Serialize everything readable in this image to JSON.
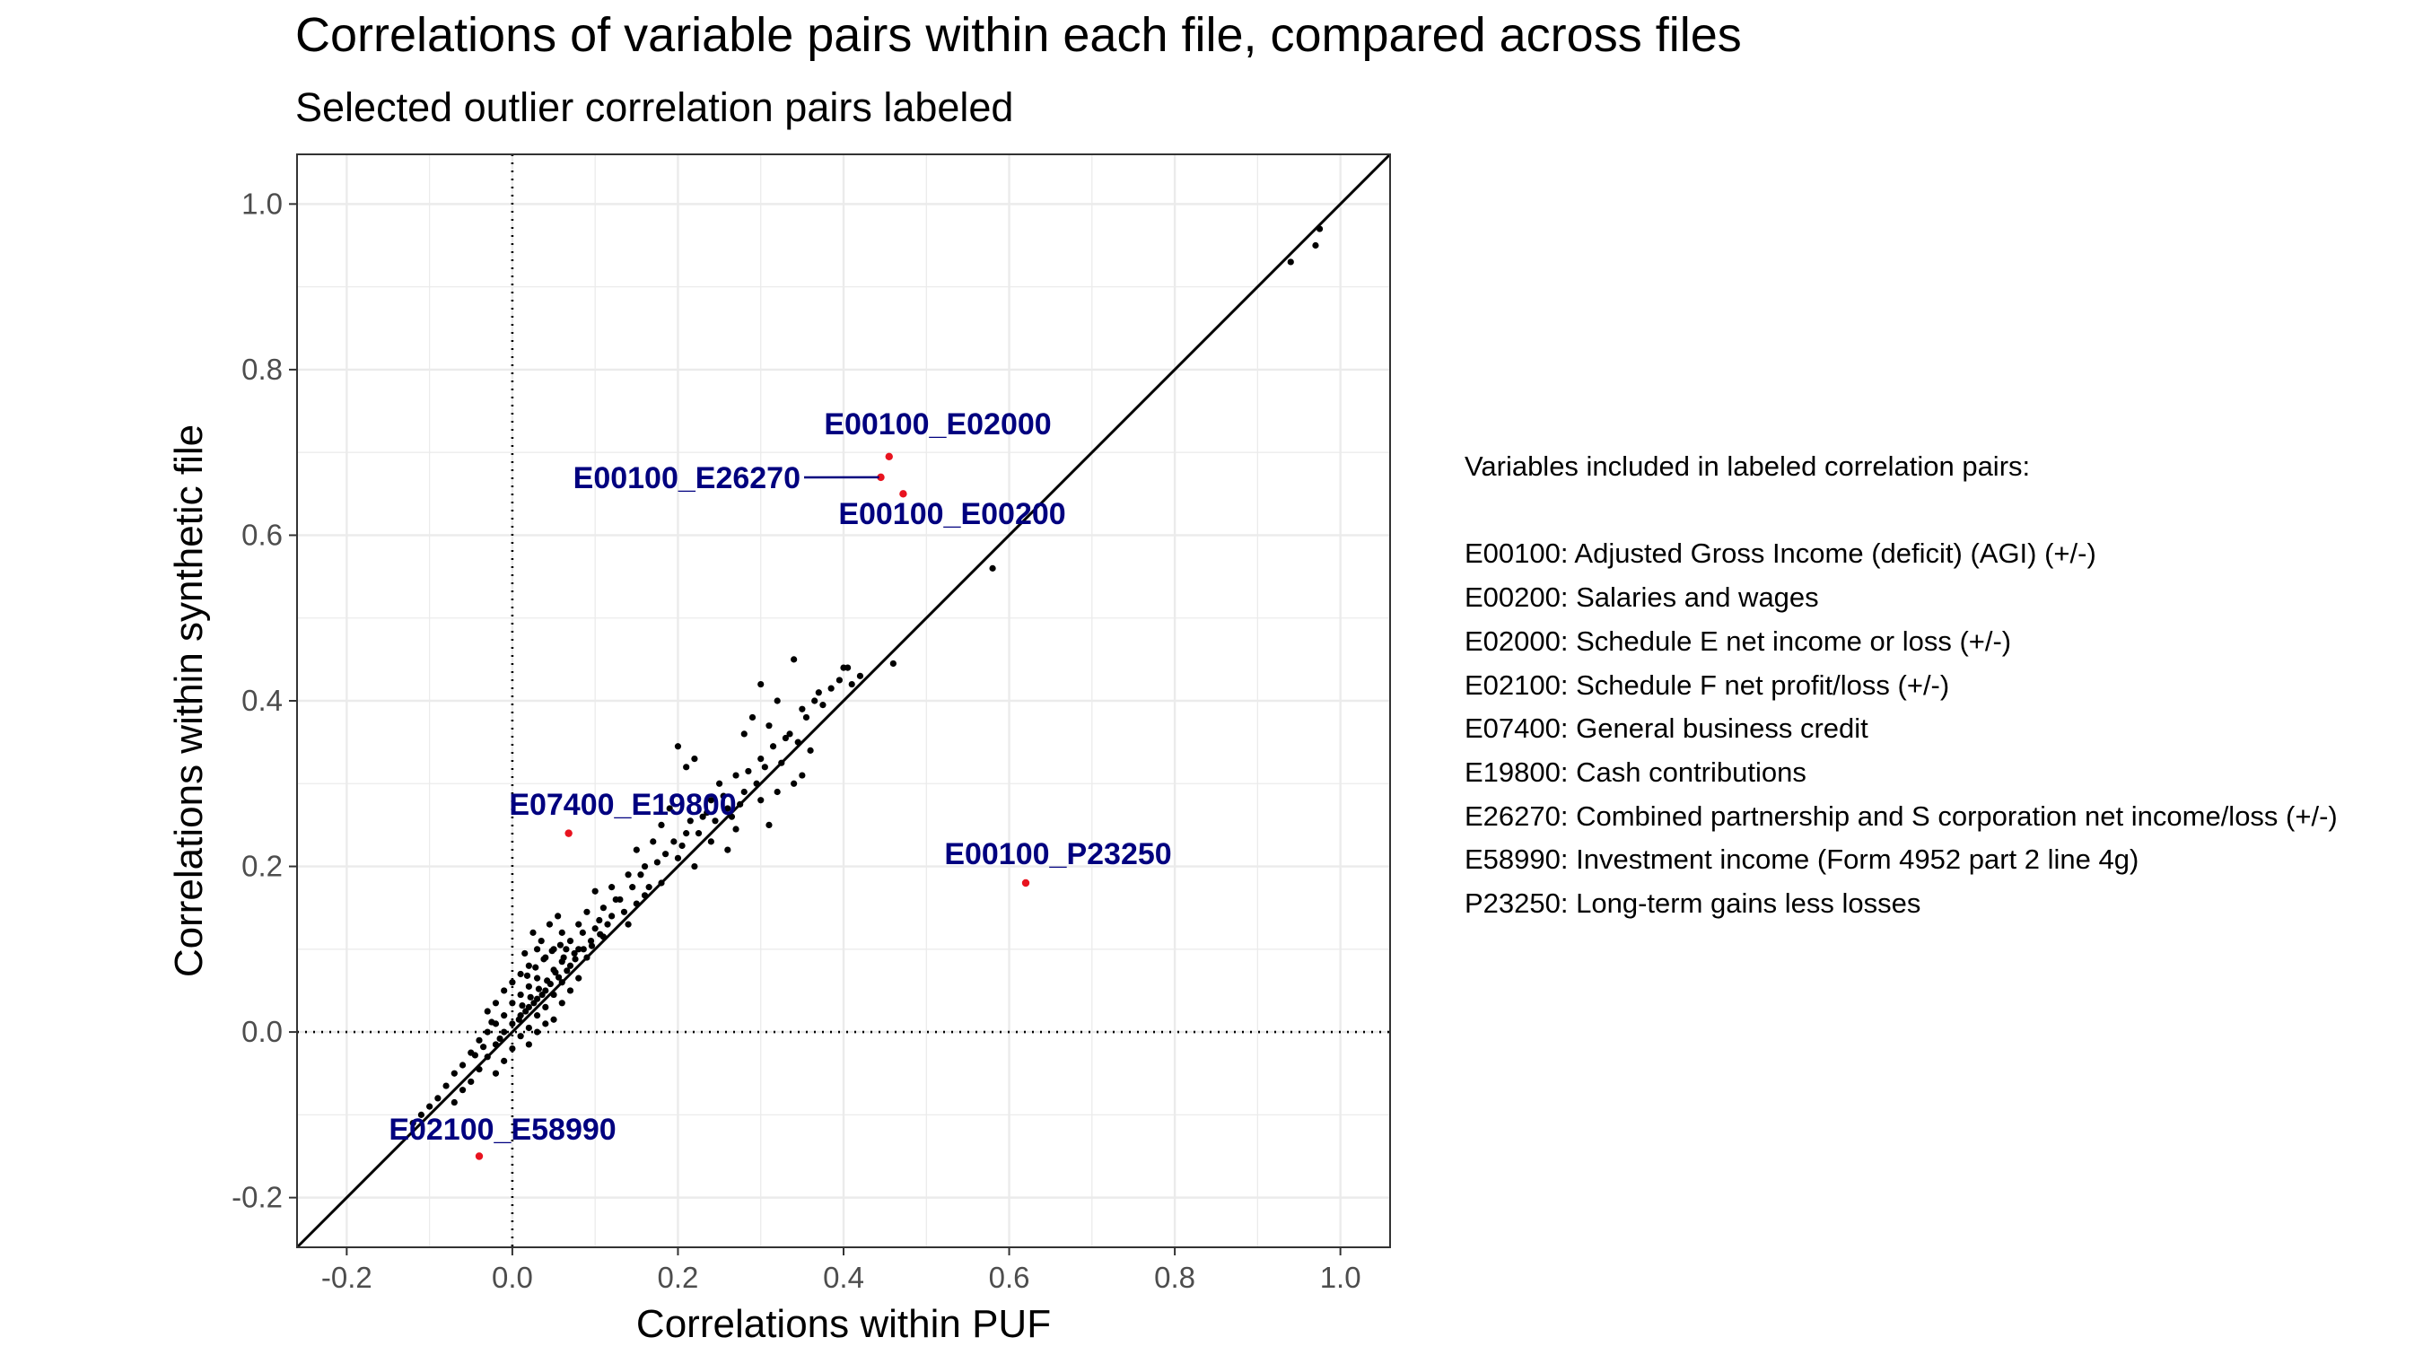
{
  "title": "Correlations of variable pairs within each file, compared across files",
  "subtitle": "Selected outlier correlation pairs labeled",
  "legend": {
    "heading": "Variables included in labeled correlation pairs:",
    "items": [
      "E00100: Adjusted Gross Income (deficit)  (AGI)  (+/-)",
      "E00200: Salaries and wages",
      "E02000: Schedule E net income or loss (+/-)",
      "E02100: Schedule F net profit/loss (+/-)",
      "E07400: General business credit",
      "E19800: Cash contributions",
      "E26270: Combined partnership and S corporation net income/loss (+/-)",
      "E58990: Investment income (Form 4952 part 2 line 4g)",
      "P23250: Long-term gains less losses"
    ]
  },
  "colors": {
    "points": "#000000",
    "outlier_points": "#e8131f",
    "labels": "#00007f",
    "grid": "#ebebeb",
    "panel_border": "#333333",
    "tick_text": "#4d4d4d"
  },
  "chart_data": {
    "type": "scatter",
    "xlabel": "Correlations within PUF",
    "ylabel": "Correlations within synthetic file",
    "xlim": [
      -0.26,
      1.06
    ],
    "ylim": [
      -0.26,
      1.06
    ],
    "x_ticks": [
      -0.2,
      0.0,
      0.2,
      0.4,
      0.6,
      0.8,
      1.0
    ],
    "y_ticks": [
      -0.2,
      0.0,
      0.2,
      0.4,
      0.6,
      0.8,
      1.0
    ],
    "x_tick_labels": [
      "-0.2",
      "0.0",
      "0.2",
      "0.4",
      "0.6",
      "0.8",
      "1.0"
    ],
    "y_tick_labels": [
      "-0.2",
      "0.0",
      "0.2",
      "0.4",
      "0.6",
      "0.8",
      "1.0"
    ],
    "grid": true,
    "reference_lines": {
      "diagonal": "y = x",
      "vertical_dotted_x": 0,
      "horizontal_dotted_y": 0
    },
    "labeled_points": [
      {
        "name": "E00100_E02000",
        "x": 0.455,
        "y": 0.695
      },
      {
        "name": "E00100_E26270",
        "x": 0.445,
        "y": 0.67
      },
      {
        "name": "E00100_E00200",
        "x": 0.472,
        "y": 0.65
      },
      {
        "name": "E07400_E19800",
        "x": 0.068,
        "y": 0.24
      },
      {
        "name": "E00100_P23250",
        "x": 0.62,
        "y": 0.18
      },
      {
        "name": "E02100_E58990",
        "x": -0.04,
        "y": -0.15
      }
    ],
    "points": [
      [
        0.94,
        0.93
      ],
      [
        0.97,
        0.95
      ],
      [
        0.975,
        0.97
      ],
      [
        0.58,
        0.56
      ],
      [
        0.34,
        0.45
      ],
      [
        0.4,
        0.44
      ],
      [
        0.42,
        0.43
      ],
      [
        0.46,
        0.445
      ],
      [
        0.3,
        0.42
      ],
      [
        0.32,
        0.4
      ],
      [
        0.35,
        0.39
      ],
      [
        0.37,
        0.41
      ],
      [
        0.41,
        0.42
      ],
      [
        0.29,
        0.38
      ],
      [
        0.28,
        0.36
      ],
      [
        0.31,
        0.37
      ],
      [
        0.33,
        0.355
      ],
      [
        0.36,
        0.34
      ],
      [
        0.3,
        0.33
      ],
      [
        0.35,
        0.31
      ],
      [
        0.34,
        0.3
      ],
      [
        0.32,
        0.29
      ],
      [
        0.2,
        0.345
      ],
      [
        0.21,
        0.32
      ],
      [
        0.22,
        0.33
      ],
      [
        0.25,
        0.3
      ],
      [
        0.27,
        0.31
      ],
      [
        0.24,
        0.28
      ],
      [
        0.26,
        0.27
      ],
      [
        0.23,
        0.26
      ],
      [
        0.28,
        0.29
      ],
      [
        0.3,
        0.28
      ],
      [
        0.31,
        0.25
      ],
      [
        0.27,
        0.245
      ],
      [
        0.19,
        0.27
      ],
      [
        0.18,
        0.25
      ],
      [
        0.21,
        0.24
      ],
      [
        0.24,
        0.23
      ],
      [
        0.26,
        0.22
      ],
      [
        0.17,
        0.23
      ],
      [
        0.15,
        0.22
      ],
      [
        0.2,
        0.21
      ],
      [
        0.22,
        0.2
      ],
      [
        0.16,
        0.2
      ],
      [
        0.14,
        0.19
      ],
      [
        0.18,
        0.18
      ],
      [
        0.12,
        0.175
      ],
      [
        0.1,
        0.17
      ],
      [
        0.13,
        0.16
      ],
      [
        0.16,
        0.165
      ],
      [
        0.11,
        0.15
      ],
      [
        0.09,
        0.145
      ],
      [
        0.08,
        0.13
      ],
      [
        0.12,
        0.14
      ],
      [
        0.15,
        0.155
      ],
      [
        0.06,
        0.12
      ],
      [
        0.07,
        0.11
      ],
      [
        0.1,
        0.125
      ],
      [
        0.14,
        0.13
      ],
      [
        0.05,
        0.1
      ],
      [
        0.03,
        0.1
      ],
      [
        0.04,
        0.09
      ],
      [
        0.08,
        0.1
      ],
      [
        0.11,
        0.115
      ],
      [
        0.02,
        0.08
      ],
      [
        0.06,
        0.085
      ],
      [
        0.09,
        0.09
      ],
      [
        0.01,
        0.07
      ],
      [
        0.03,
        0.065
      ],
      [
        0.05,
        0.075
      ],
      [
        0.07,
        0.08
      ],
      [
        0.0,
        0.06
      ],
      [
        0.02,
        0.055
      ],
      [
        0.04,
        0.05
      ],
      [
        0.06,
        0.06
      ],
      [
        0.08,
        0.065
      ],
      [
        -0.01,
        0.05
      ],
      [
        0.01,
        0.045
      ],
      [
        0.03,
        0.04
      ],
      [
        0.05,
        0.045
      ],
      [
        0.07,
        0.05
      ],
      [
        -0.02,
        0.035
      ],
      [
        0.0,
        0.035
      ],
      [
        0.02,
        0.03
      ],
      [
        0.04,
        0.03
      ],
      [
        0.06,
        0.035
      ],
      [
        -0.03,
        0.025
      ],
      [
        -0.01,
        0.02
      ],
      [
        0.01,
        0.02
      ],
      [
        0.03,
        0.02
      ],
      [
        0.05,
        0.015
      ],
      [
        -0.02,
        0.01
      ],
      [
        0.0,
        0.01
      ],
      [
        0.02,
        0.005
      ],
      [
        0.04,
        0.01
      ],
      [
        -0.03,
        0.0
      ],
      [
        -0.01,
        0.0
      ],
      [
        0.01,
        -0.005
      ],
      [
        0.03,
        0.0
      ],
      [
        -0.04,
        -0.01
      ],
      [
        -0.02,
        -0.015
      ],
      [
        0.0,
        -0.02
      ],
      [
        0.02,
        -0.015
      ],
      [
        -0.05,
        -0.025
      ],
      [
        -0.03,
        -0.03
      ],
      [
        -0.01,
        -0.035
      ],
      [
        -0.06,
        -0.04
      ],
      [
        -0.04,
        -0.045
      ],
      [
        -0.02,
        -0.05
      ],
      [
        -0.07,
        -0.05
      ],
      [
        -0.05,
        -0.06
      ],
      [
        -0.08,
        -0.065
      ],
      [
        -0.06,
        -0.07
      ],
      [
        -0.09,
        -0.08
      ],
      [
        -0.1,
        -0.09
      ],
      [
        -0.11,
        -0.1
      ],
      [
        -0.12,
        -0.11
      ],
      [
        -0.07,
        -0.085
      ],
      [
        0.035,
        0.11
      ],
      [
        0.045,
        0.13
      ],
      [
        0.025,
        0.12
      ],
      [
        0.055,
        0.14
      ],
      [
        0.015,
        0.095
      ],
      [
        0.065,
        0.1
      ],
      [
        0.085,
        0.12
      ],
      [
        0.095,
        0.11
      ],
      [
        0.075,
        0.095
      ],
      [
        0.105,
        0.135
      ],
      [
        0.115,
        0.13
      ],
      [
        0.125,
        0.16
      ],
      [
        0.135,
        0.145
      ],
      [
        0.145,
        0.175
      ],
      [
        0.155,
        0.19
      ],
      [
        0.165,
        0.175
      ],
      [
        0.175,
        0.205
      ],
      [
        0.185,
        0.215
      ],
      [
        0.195,
        0.23
      ],
      [
        0.205,
        0.225
      ],
      [
        0.215,
        0.255
      ],
      [
        0.225,
        0.24
      ],
      [
        0.235,
        0.265
      ],
      [
        0.245,
        0.255
      ],
      [
        0.255,
        0.285
      ],
      [
        0.265,
        0.26
      ],
      [
        0.275,
        0.275
      ],
      [
        0.285,
        0.315
      ],
      [
        0.295,
        0.3
      ],
      [
        0.305,
        0.32
      ],
      [
        0.315,
        0.345
      ],
      [
        0.325,
        0.325
      ],
      [
        0.335,
        0.36
      ],
      [
        0.345,
        0.35
      ],
      [
        0.355,
        0.38
      ],
      [
        0.365,
        0.4
      ],
      [
        0.375,
        0.395
      ],
      [
        0.385,
        0.415
      ],
      [
        0.395,
        0.425
      ],
      [
        0.405,
        0.44
      ],
      [
        0.012,
        0.032
      ],
      [
        0.022,
        0.042
      ],
      [
        0.032,
        0.052
      ],
      [
        0.042,
        0.062
      ],
      [
        0.052,
        0.072
      ],
      [
        0.062,
        0.09
      ],
      [
        0.018,
        0.068
      ],
      [
        0.028,
        0.078
      ],
      [
        0.038,
        0.088
      ],
      [
        0.048,
        0.098
      ],
      [
        0.058,
        0.105
      ],
      [
        -0.015,
        -0.008
      ],
      [
        -0.025,
        0.012
      ],
      [
        -0.035,
        -0.018
      ],
      [
        -0.045,
        -0.028
      ],
      [
        0.008,
        0.015
      ],
      [
        0.016,
        0.025
      ],
      [
        0.026,
        0.035
      ],
      [
        0.036,
        0.045
      ],
      [
        0.046,
        0.058
      ],
      [
        0.056,
        0.066
      ],
      [
        0.066,
        0.074
      ],
      [
        0.076,
        0.088
      ],
      [
        0.086,
        0.1
      ],
      [
        0.096,
        0.104
      ],
      [
        0.106,
        0.118
      ]
    ]
  }
}
